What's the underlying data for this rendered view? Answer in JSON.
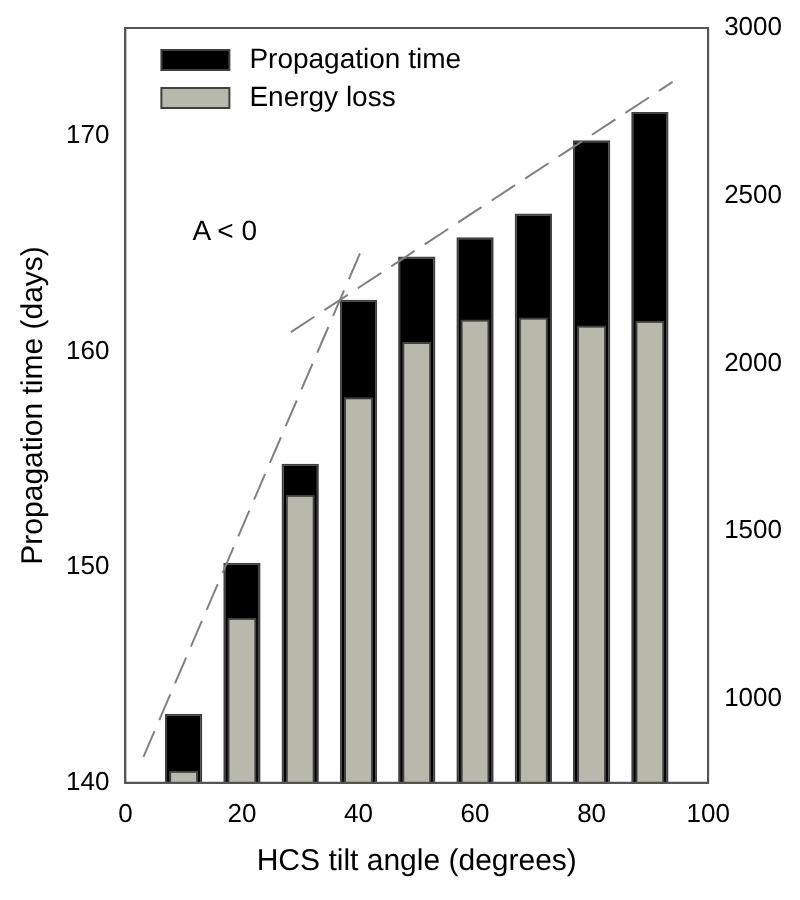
{
  "chart_data": {
    "type": "bar",
    "xlabel": "HCS tilt angle (degrees)",
    "ylabel": "Propagation time (days)",
    "x": [
      10,
      20,
      30,
      40,
      50,
      60,
      70,
      80,
      90
    ],
    "xlim": [
      0,
      100
    ],
    "xticks": [
      0,
      20,
      40,
      60,
      80,
      100
    ],
    "ylim": [
      140,
      175
    ],
    "yticks": [
      140,
      150,
      160,
      170
    ],
    "y2lim": [
      750,
      3000
    ],
    "y2ticks": [
      1000,
      1500,
      2000,
      2500,
      3000
    ],
    "grid": false,
    "legend": "top left",
    "annotations": [
      "A < 0"
    ],
    "series": [
      {
        "name": "Propagation time",
        "color": "#000000",
        "values": [
          143.2,
          150.2,
          154.8,
          162.4,
          164.4,
          165.3,
          166.4,
          169.8,
          171.1
        ]
      },
      {
        "name": "Energy loss",
        "color": "#b9b9ab",
        "axis": "y2",
        "values": [
          786,
          1242,
          1609,
          1899,
          2064,
          2131,
          2137,
          2113,
          2127
        ]
      },
      {
        "type": "line",
        "color": "#808080",
        "line_style": "dashed",
        "marker": "none",
        "x": [
          3.1,
          40.5
        ],
        "values": [
          141.2,
          164.7
        ]
      },
      {
        "type": "line",
        "color": "#808080",
        "line_style": "dashed",
        "marker": "none",
        "x": [
          28.4,
          93.9
        ],
        "values": [
          160.9,
          172.5
        ]
      }
    ]
  }
}
